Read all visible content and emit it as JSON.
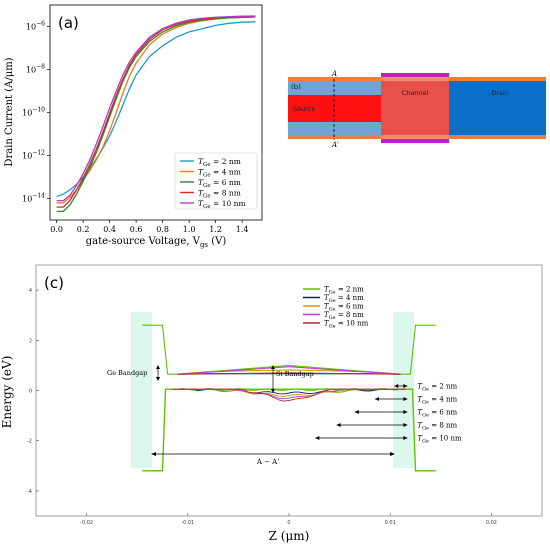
{
  "panel_a": {
    "label": "(a)",
    "xlabel": "gate-source Voltage, V",
    "xlabel_sub": "gs",
    "xlabel_unit": " (V)",
    "ylabel": "Drain Current (A/μm)",
    "x_ticks": [
      "0.0",
      "0.2",
      "0.4",
      "0.6",
      "0.8",
      "1.0",
      "1.2",
      "1.4"
    ],
    "y_ticks": [
      {
        "base": "10",
        "exp": "−6"
      },
      {
        "base": "10",
        "exp": "−8"
      },
      {
        "base": "10",
        "exp": "−10"
      },
      {
        "base": "10",
        "exp": "−12"
      },
      {
        "base": "10",
        "exp": "−14"
      }
    ]
  },
  "panel_b": {
    "label": "(b)",
    "source": "Source",
    "channel": "Channel",
    "drain": "Drain",
    "a_top": "A",
    "a_bottom": "A'"
  },
  "panel_c": {
    "label": "(c)",
    "ylabel": "Energy (eV)",
    "xlabel": "Z (μm)",
    "x_ticks": [
      "-0.02",
      "-0.01",
      "0",
      "0.01",
      "0.02"
    ],
    "y_ticks": [
      "4",
      "2",
      "0",
      "-2",
      "-4"
    ],
    "ge_bandgap": "Ge Bandgap",
    "si_bandgap": "Si Bandgap",
    "aa_label": "A − A'",
    "thickness_labels": [
      {
        "sym": "T",
        "sub": "Ge",
        "val": " = 2 nm"
      },
      {
        "sym": "T",
        "sub": "Ge",
        "val": " = 4 nm"
      },
      {
        "sym": "T",
        "sub": "Ge",
        "val": " = 6 nm"
      },
      {
        "sym": "T",
        "sub": "Ge",
        "val": " = 8 nm"
      },
      {
        "sym": "T",
        "sub": "Ge",
        "val": " = 10 nm"
      }
    ]
  },
  "chart_data": [
    {
      "type": "line",
      "panel": "(a)",
      "title": "",
      "xlabel": "gate-source Voltage, Vgs (V)",
      "ylabel": "Drain Current (A/μm)",
      "xlim": [
        -0.05,
        1.55
      ],
      "ylim_log10": [
        -15,
        -5
      ],
      "log_y": true,
      "legend_position": "lower-right",
      "x": [
        0.0,
        0.05,
        0.1,
        0.15,
        0.2,
        0.25,
        0.3,
        0.35,
        0.4,
        0.45,
        0.5,
        0.55,
        0.6,
        0.7,
        0.8,
        0.9,
        1.0,
        1.1,
        1.2,
        1.3,
        1.4,
        1.5
      ],
      "series": [
        {
          "name": "TGe = 2 nm",
          "color": "#1f9bcf",
          "log10_values": [
            -13.9,
            -13.8,
            -13.6,
            -13.35,
            -13.0,
            -12.6,
            -12.15,
            -11.65,
            -11.1,
            -10.4,
            -9.65,
            -8.9,
            -8.25,
            -7.4,
            -6.9,
            -6.5,
            -6.25,
            -6.1,
            -5.95,
            -5.85,
            -5.8,
            -5.78
          ]
        },
        {
          "name": "TGe = 4 nm",
          "color": "#f07b1e",
          "log10_values": [
            -14.2,
            -14.2,
            -13.95,
            -13.6,
            -13.15,
            -12.7,
            -12.2,
            -11.6,
            -10.85,
            -10.0,
            -9.1,
            -8.3,
            -7.7,
            -6.85,
            -6.35,
            -6.05,
            -5.85,
            -5.73,
            -5.65,
            -5.6,
            -5.57,
            -5.55
          ]
        },
        {
          "name": "TGe = 6 nm",
          "color": "#2a8a2a",
          "log10_values": [
            -14.6,
            -14.6,
            -14.3,
            -13.8,
            -13.2,
            -12.55,
            -11.85,
            -11.05,
            -10.2,
            -9.35,
            -8.55,
            -7.9,
            -7.4,
            -6.7,
            -6.25,
            -5.97,
            -5.8,
            -5.7,
            -5.64,
            -5.6,
            -5.58,
            -5.56
          ]
        },
        {
          "name": "TGe = 8 nm",
          "color": "#d62728",
          "log10_values": [
            -14.4,
            -14.4,
            -14.1,
            -13.6,
            -13.05,
            -12.4,
            -11.7,
            -10.9,
            -10.05,
            -9.2,
            -8.45,
            -7.8,
            -7.3,
            -6.6,
            -6.15,
            -5.9,
            -5.75,
            -5.66,
            -5.6,
            -5.57,
            -5.55,
            -5.54
          ]
        },
        {
          "name": "TGe = 10 nm",
          "color": "#b23cc9",
          "log10_values": [
            -14.1,
            -14.1,
            -13.85,
            -13.4,
            -12.85,
            -12.2,
            -11.45,
            -10.65,
            -9.8,
            -9.0,
            -8.25,
            -7.65,
            -7.2,
            -6.5,
            -6.1,
            -5.85,
            -5.7,
            -5.62,
            -5.57,
            -5.54,
            -5.52,
            -5.51
          ]
        }
      ]
    },
    {
      "type": "line",
      "panel": "(c)",
      "title": "",
      "xlabel": "Z (μm)",
      "ylabel": "Energy (eV)",
      "xlim": [
        -0.025,
        0.025
      ],
      "ylim": [
        -5,
        5
      ],
      "legend_position": "top-center",
      "series": [
        {
          "name": "TGe = 2 nm",
          "color": "#5cc400",
          "region": "conduction",
          "x": [
            -0.0145,
            -0.0125,
            -0.012,
            -0.011,
            0.0,
            0.011,
            0.012,
            0.0125,
            0.0145
          ],
          "y": [
            2.6,
            2.6,
            0.65,
            0.65,
            1.0,
            0.65,
            0.65,
            2.6,
            2.6
          ]
        },
        {
          "name": "TGe = 4 nm",
          "color": "#1a1a7a",
          "region": "conduction",
          "x": [
            -0.011,
            -0.008,
            0.0,
            0.008,
            0.011
          ],
          "y": [
            0.65,
            0.67,
            0.67,
            0.67,
            0.65
          ]
        },
        {
          "name": "TGe = 6 nm",
          "color": "#c9a000",
          "region": "conduction",
          "x": [
            -0.011,
            -0.008,
            0.0,
            0.008,
            0.011
          ],
          "y": [
            0.65,
            0.75,
            0.82,
            0.75,
            0.65
          ]
        },
        {
          "name": "TGe = 8 nm",
          "color": "#c040d0",
          "region": "conduction",
          "x": [
            -0.011,
            -0.006,
            0.0,
            0.006,
            0.011
          ],
          "y": [
            0.65,
            0.78,
            0.95,
            0.78,
            0.65
          ]
        },
        {
          "name": "TGe = 10 nm",
          "color": "#b03030",
          "region": "conduction",
          "x": [
            -0.011,
            -0.004,
            0.0,
            0.004,
            0.011
          ],
          "y": [
            0.65,
            0.68,
            0.7,
            0.68,
            0.65
          ]
        }
      ]
    }
  ]
}
